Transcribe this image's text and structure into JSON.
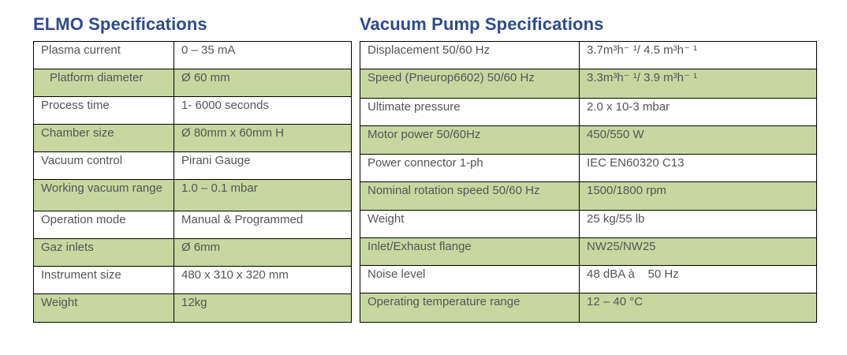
{
  "elmo": {
    "title": "ELMO Specifications",
    "rows": [
      {
        "label": "Plasma current",
        "value": "0 – 35 mA"
      },
      {
        "label": "Platform diameter",
        "value": "Ø 60 mm"
      },
      {
        "label": "Process time",
        "value": "1- 6000 seconds"
      },
      {
        "label": "Chamber size",
        "value": "Ø 80mm x 60mm H"
      },
      {
        "label": "Vacuum control",
        "value": "Pirani Gauge"
      },
      {
        "label": "Working vacuum range",
        "value": "1.0 – 0.1 mbar"
      },
      {
        "label": "Operation mode",
        "value": "Manual & Programmed"
      },
      {
        "label": "Gaz inlets",
        "value": "Ø 6mm"
      },
      {
        "label": "Instrument size",
        "value": "480 x 310 x 320 mm"
      },
      {
        "label": "Weight",
        "value": "12kg"
      }
    ]
  },
  "vacuum": {
    "title": "Vacuum Pump Specifications",
    "rows": [
      {
        "label": "Displacement 50/60 Hz",
        "value": "3.7m³h⁻ ¹/ 4.5 m³h⁻ ¹"
      },
      {
        "label": "Speed (Pneurop6602) 50/60 Hz",
        "value": "3.3m³h⁻ ¹/ 3.9 m³h⁻ ¹"
      },
      {
        "label": "Ultimate pressure",
        "value": "2.0 x 10-3 mbar"
      },
      {
        "label": "Motor power 50/60Hz",
        "value": "450/550 W"
      },
      {
        "label": "Power connector 1-ph",
        "value": "IEC EN60320 C13"
      },
      {
        "label": "Nominal rotation speed 50/60 Hz",
        "value": "1500/1800 rpm"
      },
      {
        "label": "Weight",
        "value": "25 kg/55 lb"
      },
      {
        "label": "Inlet/Exhaust flange",
        "value": "NW25/NW25"
      },
      {
        "label": "Noise level",
        "value": "48 dBA à    50 Hz"
      },
      {
        "label": "Operating temperature range",
        "value": "12 – 40 °C"
      }
    ]
  }
}
